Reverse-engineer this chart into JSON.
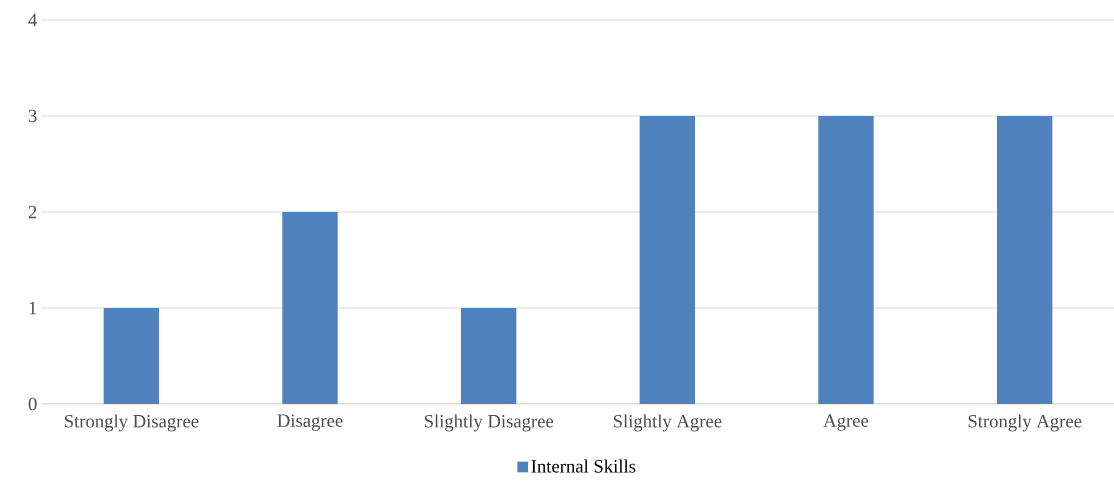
{
  "chart_data": {
    "type": "bar",
    "categories": [
      "Strongly Disagree",
      "Disagree",
      "Slightly Disagree",
      "Slightly Agree",
      "Agree",
      "Strongly Agree"
    ],
    "series": [
      {
        "name": "Internal Skills",
        "color": "#4f81bd",
        "values": [
          1,
          2,
          1,
          3,
          3,
          3
        ]
      }
    ],
    "ylim": [
      0,
      4
    ],
    "yticks": [
      0,
      1,
      2,
      3,
      4
    ],
    "grid": "y",
    "legend": "bottom"
  }
}
